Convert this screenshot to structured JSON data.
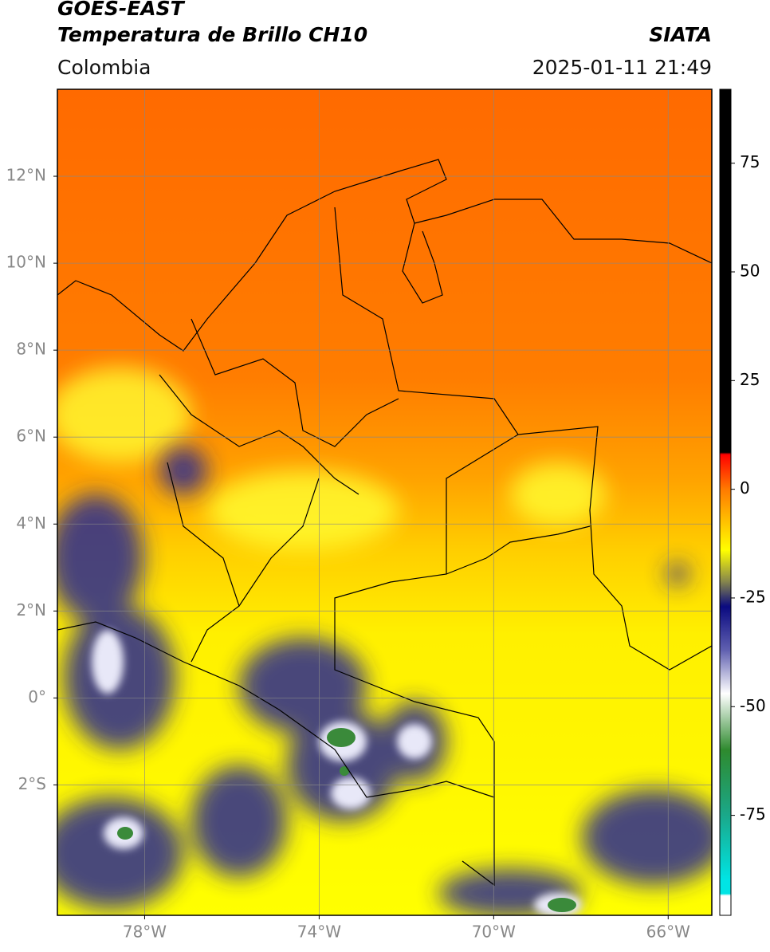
{
  "header": {
    "title_line1": "GOES-EAST",
    "title_line2": "Temperatura de Brillo CH10",
    "source": "SIATA",
    "region": "Colombia",
    "datetime": "2025-01-11 21:49"
  },
  "map": {
    "xlim": [
      -80,
      -65
    ],
    "ylim": [
      -5,
      14
    ],
    "xticks": [
      {
        "value": -78,
        "label": "78°W"
      },
      {
        "value": -74,
        "label": "74°W"
      },
      {
        "value": -70,
        "label": "70°W"
      },
      {
        "value": -66,
        "label": "66°W"
      }
    ],
    "yticks": [
      {
        "value": 12,
        "label": "12°N"
      },
      {
        "value": 10,
        "label": "10°N"
      },
      {
        "value": 8,
        "label": "8°N"
      },
      {
        "value": 6,
        "label": "6°N"
      },
      {
        "value": 4,
        "label": "4°N"
      },
      {
        "value": 2,
        "label": "2°N"
      },
      {
        "value": 0,
        "label": "0°"
      },
      {
        "value": -2,
        "label": "2°S"
      }
    ],
    "grid": true
  },
  "colorbar": {
    "lim": [
      -98,
      92
    ],
    "ticks": [
      75,
      50,
      25,
      0,
      -25,
      -50,
      -75
    ],
    "stops": [
      {
        "value": 92,
        "color": "#000000"
      },
      {
        "value": 8.5,
        "color": "#000000"
      },
      {
        "value": 8,
        "color": "#ff0000"
      },
      {
        "value": 0,
        "color": "#ff7a00"
      },
      {
        "value": -14,
        "color": "#ffff00"
      },
      {
        "value": -21,
        "color": "#8a8a4a"
      },
      {
        "value": -27,
        "color": "#0a0a80"
      },
      {
        "value": -37,
        "color": "#6060b0"
      },
      {
        "value": -47,
        "color": "#ffffff"
      },
      {
        "value": -60,
        "color": "#2e8a2e"
      },
      {
        "value": -75,
        "color": "#1aa88a"
      },
      {
        "value": -90,
        "color": "#00e5e5"
      },
      {
        "value": -93,
        "color": "#00e5e5"
      },
      {
        "value": -93.5,
        "color": "#ffffff"
      },
      {
        "value": -98,
        "color": "#ffffff"
      }
    ]
  }
}
